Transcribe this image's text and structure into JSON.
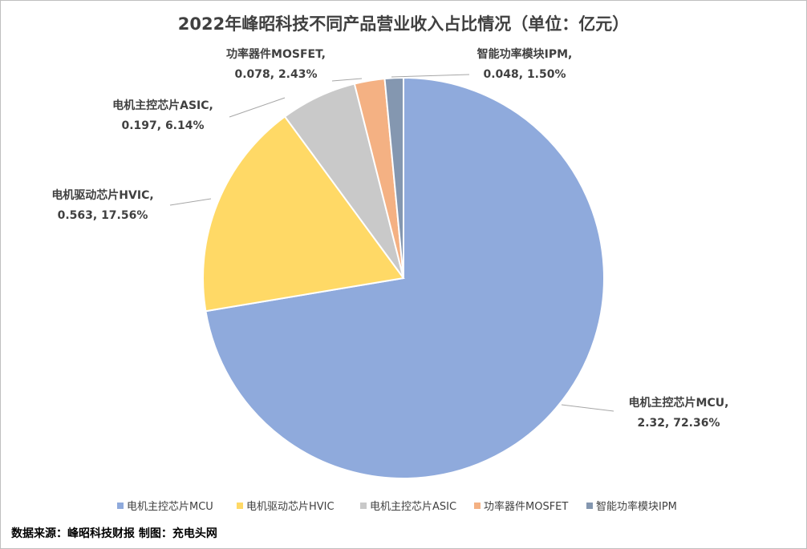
{
  "chart_data": {
    "type": "pie",
    "title": "2022年峰昭科技不同产品营业收入占比情况（单位：亿元）",
    "series": [
      {
        "name": "电机主控芯片MCU",
        "value": 2.32,
        "percent": 72.36,
        "color": "#8faadc",
        "label_value": "2.32",
        "label_percent": "72.36%"
      },
      {
        "name": "电机驱动芯片HVIC",
        "value": 0.563,
        "percent": 17.56,
        "color": "#ffd966",
        "label_value": "0.563",
        "label_percent": "17.56%"
      },
      {
        "name": "电机主控芯片ASIC",
        "value": 0.197,
        "percent": 6.14,
        "color": "#c9c9c9",
        "label_value": "0.197",
        "label_percent": "6.14%"
      },
      {
        "name": "功率器件MOSFET",
        "value": 0.078,
        "percent": 2.43,
        "color": "#f4b183",
        "label_value": "0.078",
        "label_percent": "2.43%"
      },
      {
        "name": "智能功率模块IPM",
        "value": 0.048,
        "percent": 1.5,
        "color": "#8497b0",
        "label_value": "0.048",
        "label_percent": "1.50%"
      }
    ],
    "legend_position": "bottom"
  },
  "source": "数据来源：峰昭科技财报  制图：充电头网"
}
